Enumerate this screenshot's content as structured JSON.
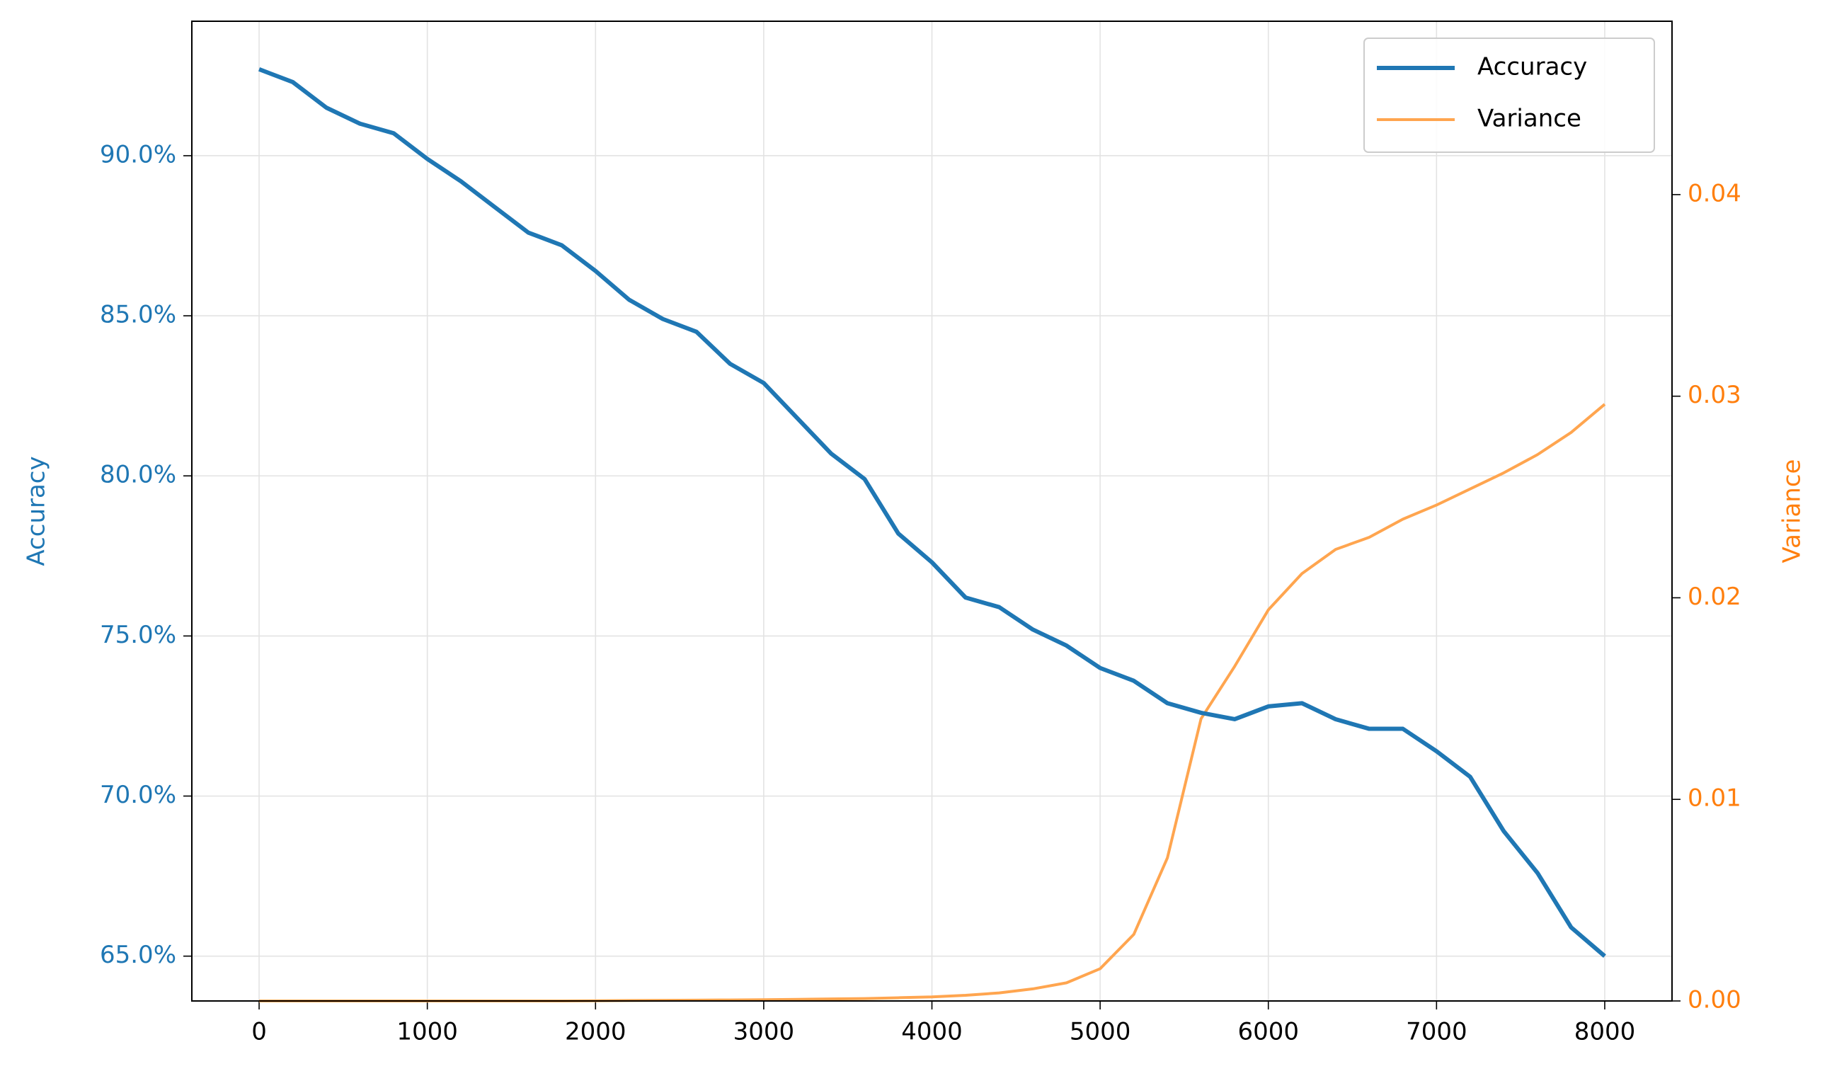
{
  "chart_data": {
    "type": "line",
    "x": [
      0,
      200,
      400,
      600,
      800,
      1000,
      1200,
      1400,
      1600,
      1800,
      2000,
      2200,
      2400,
      2600,
      2800,
      3000,
      3200,
      3400,
      3600,
      3800,
      4000,
      4200,
      4400,
      4600,
      4800,
      5000,
      5200,
      5400,
      5600,
      5800,
      6000,
      6200,
      6400,
      6600,
      6800,
      7000,
      7200,
      7400,
      7600,
      7800,
      8000
    ],
    "series": [
      {
        "name": "Accuracy",
        "color": "#1f77b4",
        "axis": "y",
        "values": [
          92.7,
          92.3,
          91.5,
          91.0,
          90.7,
          89.9,
          89.2,
          88.4,
          87.6,
          87.2,
          86.4,
          85.5,
          84.9,
          84.5,
          83.5,
          82.9,
          81.8,
          80.7,
          79.9,
          78.2,
          77.3,
          76.2,
          75.9,
          75.2,
          74.7,
          74.0,
          73.6,
          72.9,
          72.6,
          72.4,
          72.8,
          72.9,
          72.4,
          72.1,
          72.1,
          71.4,
          70.6,
          68.9,
          67.6,
          65.9,
          65.0
        ]
      },
      {
        "name": "Variance",
        "color": "#ffa54f",
        "axis": "y2",
        "values": [
          0,
          0,
          0,
          0,
          0,
          0,
          0,
          0,
          0,
          0,
          1e-05,
          2e-05,
          3e-05,
          4e-05,
          5e-05,
          6e-05,
          8e-05,
          0.0001,
          0.00012,
          0.00016,
          0.0002,
          0.00028,
          0.0004,
          0.0006,
          0.0009,
          0.0016,
          0.0033,
          0.0071,
          0.014,
          0.0166,
          0.0194,
          0.0212,
          0.0224,
          0.023,
          0.0239,
          0.0246,
          0.0254,
          0.0262,
          0.0271,
          0.0282,
          0.0296
        ]
      }
    ],
    "y_label": "Accuracy",
    "y2_label": "Variance",
    "y_label_color": "#1f77b4",
    "y2_label_color": "#ff7f0e",
    "xlim": [
      -400,
      8400
    ],
    "xticks": [
      0,
      1000,
      2000,
      3000,
      4000,
      5000,
      6000,
      7000,
      8000
    ],
    "ylim": [
      63.6,
      94.2
    ],
    "yticks": [
      {
        "value": 65,
        "label": "65.0%"
      },
      {
        "value": 70,
        "label": "70.0%"
      },
      {
        "value": 75,
        "label": "75.0%"
      },
      {
        "value": 80,
        "label": "80.0%"
      },
      {
        "value": 85,
        "label": "85.0%"
      },
      {
        "value": 90,
        "label": "90.0%"
      }
    ],
    "y2lim": [
      0,
      0.0486
    ],
    "y2ticks": [
      {
        "value": 0,
        "label": "0.00"
      },
      {
        "value": 0.01,
        "label": "0.01"
      },
      {
        "value": 0.02,
        "label": "0.02"
      },
      {
        "value": 0.03,
        "label": "0.03"
      },
      {
        "value": 0.04,
        "label": "0.04"
      }
    ],
    "grid": true,
    "legend": "upper right"
  }
}
